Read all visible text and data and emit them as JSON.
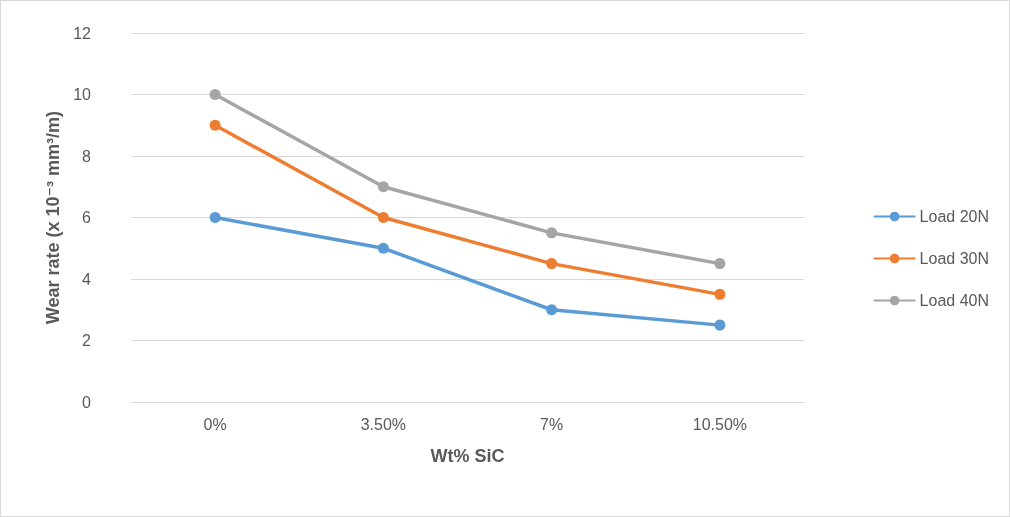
{
  "chart_data": {
    "type": "line",
    "xlabel": "Wt% SiC",
    "ylabel": "Wear rate (x 10⁻³ mm³/m)",
    "categories": [
      "0%",
      "3.50%",
      "7%",
      "10.50%"
    ],
    "series": [
      {
        "name": "Load 20N",
        "color": "#5b9bd5",
        "values": [
          6,
          5,
          3,
          2.5
        ]
      },
      {
        "name": "Load 30N",
        "color": "#ed7d31",
        "values": [
          9,
          6,
          4.5,
          3.5
        ]
      },
      {
        "name": "Load 40N",
        "color": "#a5a5a5",
        "values": [
          10,
          7,
          5.5,
          4.5
        ]
      }
    ],
    "ylim": [
      0,
      12
    ],
    "yticks": [
      0,
      2,
      4,
      6,
      8,
      10,
      12
    ],
    "grid": "y",
    "legend": "right",
    "marker": "circle",
    "line_style": "solid"
  }
}
